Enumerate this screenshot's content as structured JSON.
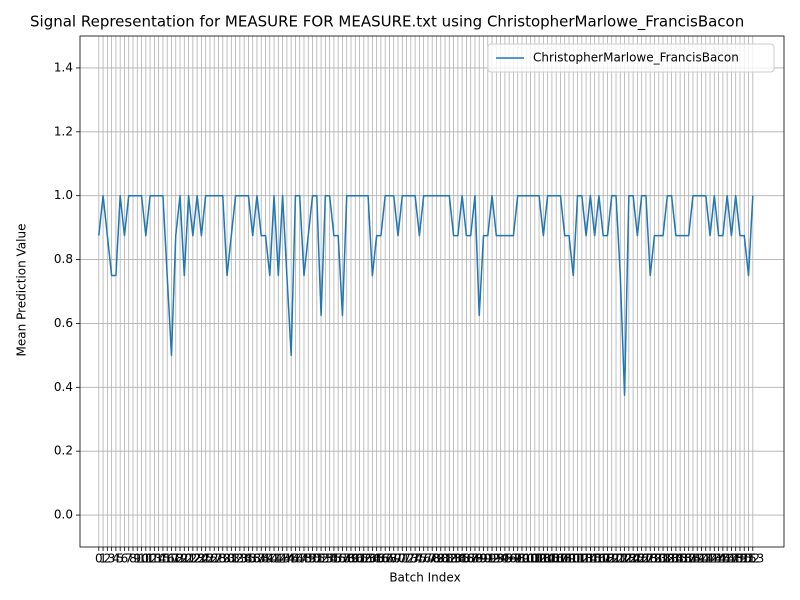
{
  "chart_data": {
    "type": "line",
    "title": "Signal Representation for MEASURE FOR MEASURE.txt using ChristopherMarlowe_FrancisBacon",
    "xlabel": "Batch Index",
    "ylabel": "Mean Prediction Value",
    "x": [
      0,
      1,
      2,
      3,
      4,
      5,
      6,
      7,
      8,
      9,
      10,
      11,
      12,
      13,
      14,
      15,
      16,
      17,
      18,
      19,
      20,
      21,
      22,
      23,
      24,
      25,
      26,
      27,
      28,
      29,
      30,
      31,
      32,
      33,
      34,
      35,
      36,
      37,
      38,
      39,
      40,
      41,
      42,
      43,
      44,
      45,
      46,
      47,
      48,
      49,
      50,
      51,
      52,
      53,
      54,
      55,
      56,
      57,
      58,
      59,
      60,
      61,
      62,
      63,
      64,
      65,
      66,
      67,
      68,
      69,
      70,
      71,
      72,
      73,
      74,
      75,
      76,
      77,
      78,
      79,
      80,
      81,
      82,
      83,
      84,
      85,
      86,
      87,
      88,
      89,
      90,
      91,
      92,
      93,
      94,
      95,
      96,
      97,
      98,
      99,
      100,
      101,
      102,
      103,
      104,
      105,
      106,
      107,
      108,
      109,
      110,
      111,
      112,
      113,
      114,
      115,
      116,
      117,
      118,
      119,
      120,
      121,
      122,
      123,
      124,
      125,
      126,
      127,
      128,
      129,
      130,
      131,
      132,
      133,
      134,
      135,
      136,
      137,
      138,
      139,
      140,
      141,
      142,
      143,
      144,
      145,
      146,
      147,
      148,
      149,
      150,
      151,
      152,
      153
    ],
    "series": [
      {
        "name": "ChristopherMarlowe_FrancisBacon",
        "color": "#1f77b4",
        "values": [
          0.875,
          1,
          0.875,
          0.75,
          0.75,
          1,
          0.875,
          1,
          1,
          1,
          1,
          0.875,
          1,
          1,
          1,
          1,
          0.75,
          0.5,
          0.875,
          1,
          0.75,
          1,
          0.875,
          1,
          0.875,
          1,
          1,
          1,
          1,
          1,
          0.75,
          0.875,
          1,
          1,
          1,
          1,
          0.875,
          1,
          0.875,
          0.875,
          0.75,
          1,
          0.75,
          1,
          0.75,
          0.5,
          1,
          1,
          0.75,
          0.875,
          1,
          1,
          0.625,
          1,
          1,
          0.875,
          0.875,
          0.625,
          1,
          1,
          1,
          1,
          1,
          1,
          0.75,
          0.875,
          0.875,
          1,
          1,
          1,
          0.875,
          1,
          1,
          1,
          1,
          0.875,
          1,
          1,
          1,
          1,
          1,
          1,
          1,
          0.875,
          0.875,
          1,
          0.875,
          0.875,
          1,
          0.625,
          0.875,
          0.875,
          1,
          0.875,
          0.875,
          0.875,
          0.875,
          0.875,
          1,
          1,
          1,
          1,
          1,
          1,
          0.875,
          1,
          1,
          1,
          1,
          0.875,
          0.875,
          0.75,
          1,
          1,
          0.875,
          1,
          0.875,
          1,
          0.875,
          0.875,
          1,
          1,
          0.75,
          0.375,
          1,
          1,
          0.875,
          1,
          1,
          0.75,
          0.875,
          0.875,
          0.875,
          1,
          1,
          0.875,
          0.875,
          0.875,
          0.875,
          1,
          1,
          1,
          1,
          0.875,
          1,
          0.875,
          0.875,
          1,
          0.875,
          1,
          0.875,
          0.875,
          0.75,
          1
        ]
      }
    ],
    "xlim": [
      -4.4,
      160.3
    ],
    "xticks": [
      0,
      1,
      2,
      3,
      4,
      5,
      6,
      7,
      8,
      9,
      10,
      11,
      12,
      13,
      14,
      15,
      16,
      17,
      18,
      19,
      20,
      21,
      22,
      23,
      24,
      25,
      26,
      27,
      28,
      29,
      30,
      31,
      32,
      33,
      34,
      35,
      36,
      37,
      38,
      39,
      40,
      41,
      42,
      43,
      44,
      45,
      46,
      47,
      48,
      49,
      50,
      51,
      52,
      53,
      54,
      55,
      56,
      57,
      58,
      59,
      60,
      61,
      62,
      63,
      64,
      65,
      66,
      67,
      68,
      69,
      70,
      71,
      72,
      73,
      74,
      75,
      76,
      77,
      78,
      79,
      80,
      81,
      82,
      83,
      84,
      85,
      86,
      87,
      88,
      89,
      90,
      91,
      92,
      93,
      94,
      95,
      96,
      97,
      98,
      99,
      100,
      101,
      102,
      103,
      104,
      105,
      106,
      107,
      108,
      109,
      110,
      111,
      112,
      113,
      114,
      115,
      116,
      117,
      118,
      119,
      120,
      121,
      122,
      123,
      124,
      125,
      126,
      127,
      128,
      129,
      130,
      131,
      132,
      133,
      134,
      135,
      136,
      137,
      138,
      139,
      140,
      141,
      142,
      143,
      144,
      145,
      146,
      147,
      148,
      149,
      150,
      151,
      152,
      153
    ],
    "ylim": [
      -0.1,
      1.5
    ],
    "yticks": [
      {
        "value": 0,
        "label": "0.0"
      },
      {
        "value": 0.2,
        "label": "0.2"
      },
      {
        "value": 0.4,
        "label": "0.4"
      },
      {
        "value": 0.6,
        "label": "0.6"
      },
      {
        "value": 0.8,
        "label": "0.8"
      },
      {
        "value": 1,
        "label": "1.0"
      },
      {
        "value": 1.2,
        "label": "1.2"
      },
      {
        "value": 1.4,
        "label": "1.4"
      }
    ],
    "grid": true,
    "legend": "upper right"
  }
}
